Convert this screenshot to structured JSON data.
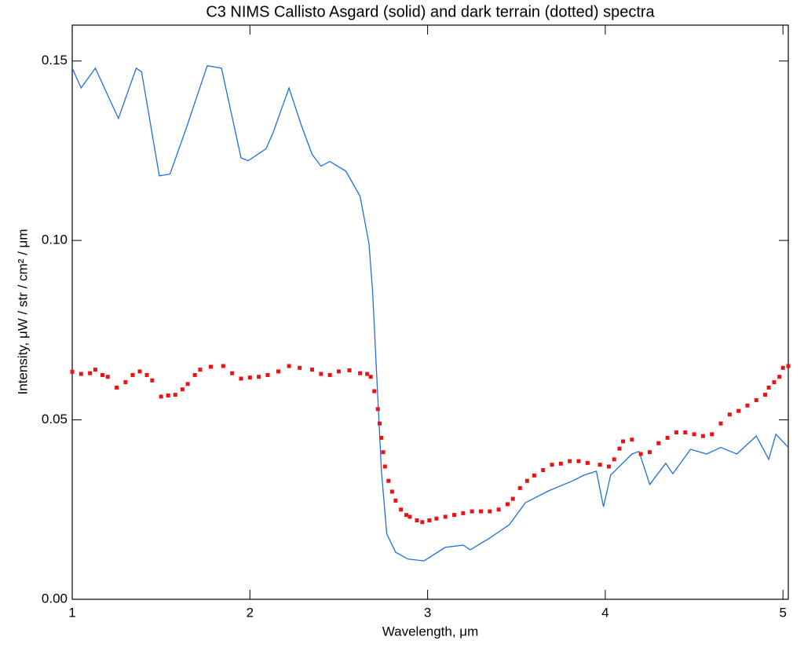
{
  "chart_data": {
    "type": "line",
    "title": "C3  NIMS  Callisto      Asgard (solid) and dark terrain (dotted) spectra",
    "xlabel": "Wavelength, μm",
    "ylabel": "Intensity,  μW / str / cm² / μm",
    "xlim": [
      1,
      5.03
    ],
    "ylim": [
      0,
      0.16
    ],
    "xticks": [
      1,
      2,
      3,
      4,
      5
    ],
    "yticks": [
      {
        "value": 0,
        "label": "0.00"
      },
      {
        "value": 0.05,
        "label": "0.05"
      },
      {
        "value": 0.1,
        "label": "0.10"
      },
      {
        "value": 0.15,
        "label": "0.15"
      }
    ],
    "series": [
      {
        "style": "solid",
        "color": "#1f6fe0",
        "x": [
          1.0,
          1.05,
          1.13,
          1.26,
          1.36,
          1.39,
          1.49,
          1.55,
          1.64,
          1.76,
          1.84,
          1.95,
          1.99,
          2.09,
          2.13,
          2.22,
          2.29,
          2.35,
          2.4,
          2.45,
          2.54,
          2.62,
          2.67,
          2.69,
          2.71,
          2.74,
          2.77,
          2.82,
          2.89,
          2.98,
          3.1,
          3.2,
          3.24,
          3.35,
          3.46,
          3.55,
          3.68,
          3.82,
          3.88,
          3.95,
          3.99,
          4.03,
          4.15,
          4.19,
          4.25,
          4.34,
          4.38,
          4.48,
          4.57,
          4.65,
          4.74,
          4.85,
          4.92,
          4.96,
          5.03
        ],
        "values": [
          0.148,
          0.1425,
          0.148,
          0.134,
          0.148,
          0.147,
          0.118,
          0.1185,
          0.131,
          0.1487,
          0.148,
          0.123,
          0.1222,
          0.1255,
          0.13,
          0.1425,
          0.132,
          0.124,
          0.1207,
          0.122,
          0.1193,
          0.1123,
          0.0992,
          0.086,
          0.066,
          0.0357,
          0.0182,
          0.0131,
          0.0112,
          0.0107,
          0.0145,
          0.0151,
          0.0138,
          0.0171,
          0.0208,
          0.0269,
          0.0302,
          0.0331,
          0.0346,
          0.0357,
          0.0258,
          0.0346,
          0.0405,
          0.0412,
          0.032,
          0.0379,
          0.035,
          0.0418,
          0.0405,
          0.0423,
          0.0405,
          0.0455,
          0.039,
          0.046,
          0.0423
        ]
      },
      {
        "style": "dotted",
        "color": "#ee1111",
        "x": [
          1.0,
          1.05,
          1.1,
          1.13,
          1.17,
          1.2,
          1.25,
          1.3,
          1.34,
          1.38,
          1.42,
          1.45,
          1.5,
          1.54,
          1.58,
          1.62,
          1.65,
          1.69,
          1.72,
          1.78,
          1.85,
          1.9,
          1.95,
          2.0,
          2.05,
          2.1,
          2.16,
          2.22,
          2.28,
          2.35,
          2.4,
          2.45,
          2.5,
          2.56,
          2.62,
          2.66,
          2.68,
          2.7,
          2.72,
          2.73,
          2.74,
          2.75,
          2.76,
          2.78,
          2.8,
          2.82,
          2.85,
          2.88,
          2.9,
          2.94,
          2.97,
          3.01,
          3.05,
          3.1,
          3.15,
          3.2,
          3.25,
          3.3,
          3.35,
          3.4,
          3.45,
          3.48,
          3.52,
          3.56,
          3.6,
          3.65,
          3.7,
          3.75,
          3.8,
          3.85,
          3.9,
          3.97,
          4.02,
          4.05,
          4.08,
          4.1,
          4.15,
          4.2,
          4.25,
          4.3,
          4.35,
          4.4,
          4.45,
          4.5,
          4.55,
          4.6,
          4.65,
          4.7,
          4.75,
          4.8,
          4.85,
          4.9,
          4.92,
          4.95,
          4.98,
          5.0,
          5.03
        ],
        "values": [
          0.0634,
          0.0628,
          0.063,
          0.064,
          0.0625,
          0.062,
          0.059,
          0.0605,
          0.0625,
          0.0635,
          0.0625,
          0.061,
          0.0565,
          0.0568,
          0.057,
          0.0585,
          0.06,
          0.0625,
          0.064,
          0.0648,
          0.065,
          0.063,
          0.0615,
          0.0618,
          0.062,
          0.0625,
          0.0635,
          0.065,
          0.0645,
          0.064,
          0.0628,
          0.0625,
          0.0635,
          0.0638,
          0.063,
          0.0628,
          0.062,
          0.058,
          0.053,
          0.049,
          0.045,
          0.041,
          0.037,
          0.033,
          0.03,
          0.0275,
          0.025,
          0.0235,
          0.023,
          0.022,
          0.0215,
          0.022,
          0.0225,
          0.023,
          0.0235,
          0.024,
          0.0245,
          0.0245,
          0.0245,
          0.025,
          0.0265,
          0.028,
          0.031,
          0.033,
          0.0345,
          0.036,
          0.0375,
          0.0378,
          0.0385,
          0.0385,
          0.038,
          0.0375,
          0.037,
          0.039,
          0.042,
          0.044,
          0.0445,
          0.0405,
          0.041,
          0.0435,
          0.045,
          0.0465,
          0.0465,
          0.046,
          0.0455,
          0.046,
          0.049,
          0.0515,
          0.0525,
          0.054,
          0.0555,
          0.057,
          0.059,
          0.0605,
          0.062,
          0.0645,
          0.065
        ]
      }
    ]
  }
}
